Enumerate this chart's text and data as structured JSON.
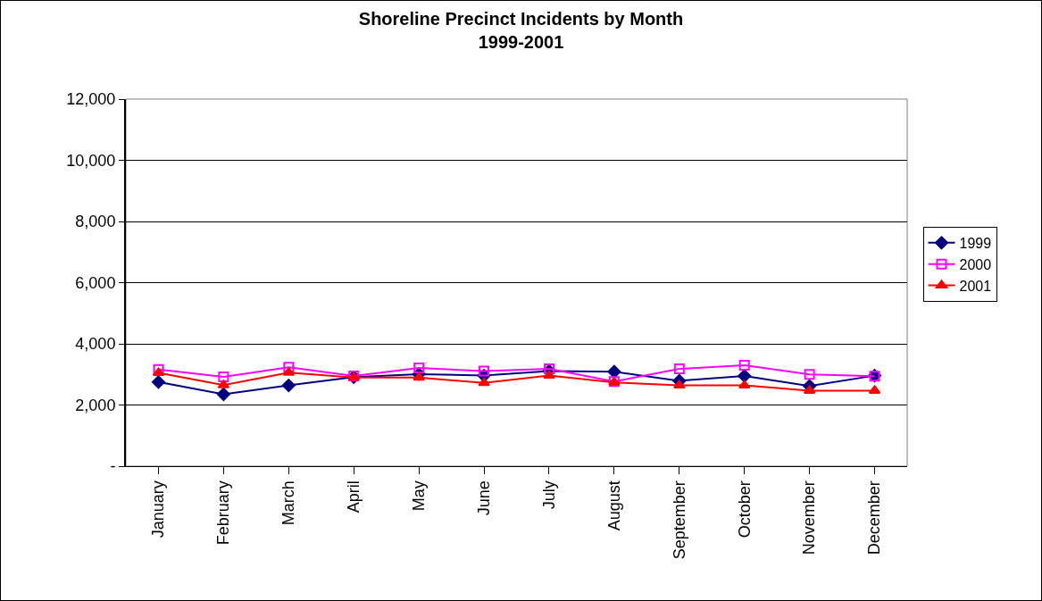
{
  "chart_data": {
    "type": "line",
    "title": "Shoreline Precinct Incidents by Month\n1999-2001",
    "categories": [
      "January",
      "February",
      "March",
      "April",
      "May",
      "June",
      "July",
      "August",
      "September",
      "October",
      "November",
      "December"
    ],
    "series": [
      {
        "name": "1999",
        "color": "#000080",
        "marker": "diamond",
        "values": [
          2750,
          2350,
          2640,
          2910,
          3010,
          2960,
          3110,
          3090,
          2790,
          2950,
          2620,
          2960
        ]
      },
      {
        "name": "2000",
        "color": "#ff00ff",
        "marker": "square",
        "values": [
          3160,
          2920,
          3230,
          2950,
          3210,
          3110,
          3180,
          2770,
          3180,
          3300,
          3000,
          2940
        ]
      },
      {
        "name": "2001",
        "color": "#ff0000",
        "marker": "triangle",
        "values": [
          3050,
          2650,
          3060,
          2900,
          2900,
          2720,
          2960,
          2740,
          2640,
          2640,
          2470,
          2470
        ]
      }
    ],
    "ylim": [
      0,
      12000
    ],
    "yticks": [
      {
        "value": 0,
        "label": "-"
      },
      {
        "value": 2000,
        "label": "2,000"
      },
      {
        "value": 4000,
        "label": "4,000"
      },
      {
        "value": 6000,
        "label": "6,000"
      },
      {
        "value": 8000,
        "label": "8,000"
      },
      {
        "value": 10000,
        "label": "10,000"
      },
      {
        "value": 12000,
        "label": "12,000"
      }
    ],
    "grid": "y",
    "legend": "right",
    "line_style": "solid"
  }
}
